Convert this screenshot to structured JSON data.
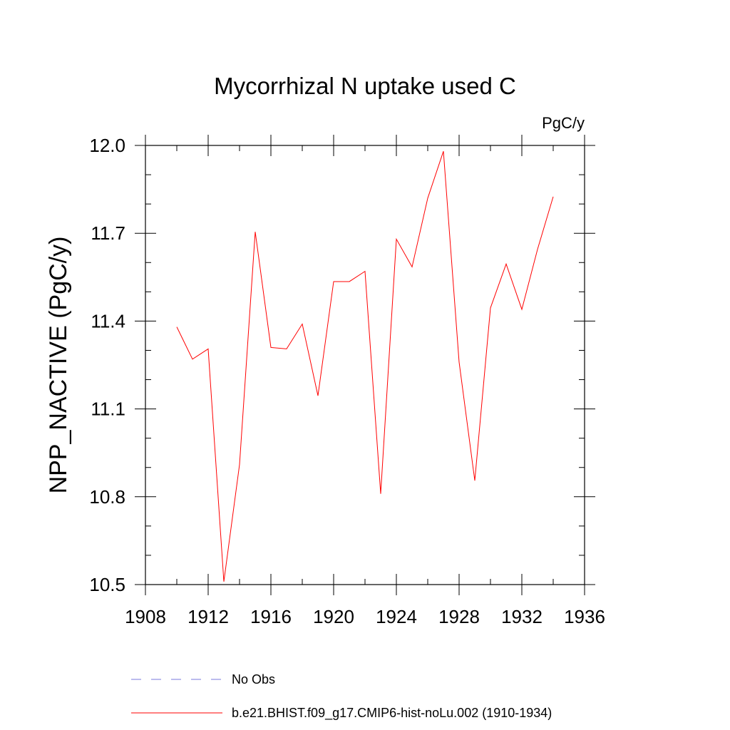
{
  "chart_data": {
    "type": "line",
    "title": "Mycorrhizal N uptake used C",
    "units_label": "PgC/y",
    "ylabel": "NPP_NACTIVE  (PgC/y)",
    "xlabel": "",
    "xlim": [
      1908,
      1936
    ],
    "ylim": [
      10.5,
      12.0
    ],
    "x_ticks": [
      1908,
      1912,
      1916,
      1920,
      1924,
      1928,
      1932,
      1936
    ],
    "x_tick_labels": [
      "1908",
      "1912",
      "1916",
      "1920",
      "1924",
      "1928",
      "1932",
      "1936"
    ],
    "y_ticks": [
      10.5,
      10.8,
      11.1,
      11.4,
      11.7,
      12.0
    ],
    "y_tick_labels": [
      "10.5",
      "10.8",
      "11.1",
      "11.4",
      "11.7",
      "12.0"
    ],
    "grid": false,
    "legend_position": "bottom",
    "series": [
      {
        "name": "b.e21.BHIST.f09_g17.CMIP6-hist-noLu.002 (1910-1934)",
        "color": "#ff0000",
        "style": "solid",
        "x": [
          1910,
          1911,
          1912,
          1913,
          1914,
          1915,
          1916,
          1917,
          1918,
          1919,
          1920,
          1921,
          1922,
          1923,
          1924,
          1925,
          1926,
          1927,
          1928,
          1929,
          1930,
          1931,
          1932,
          1933,
          1934
        ],
        "y": [
          11.38,
          11.27,
          11.305,
          10.51,
          10.91,
          11.705,
          11.31,
          11.305,
          11.39,
          11.145,
          11.535,
          11.535,
          11.57,
          10.81,
          11.68,
          11.585,
          11.82,
          11.98,
          11.26,
          10.855,
          11.445,
          11.595,
          11.44,
          11.645,
          11.825
        ]
      }
    ],
    "legend_entries": [
      {
        "label": "No Obs",
        "color": "#7a7adc",
        "style": "dashed"
      },
      {
        "label": "b.e21.BHIST.f09_g17.CMIP6-hist-noLu.002 (1910-1934)",
        "color": "#ff0000",
        "style": "solid"
      }
    ]
  }
}
